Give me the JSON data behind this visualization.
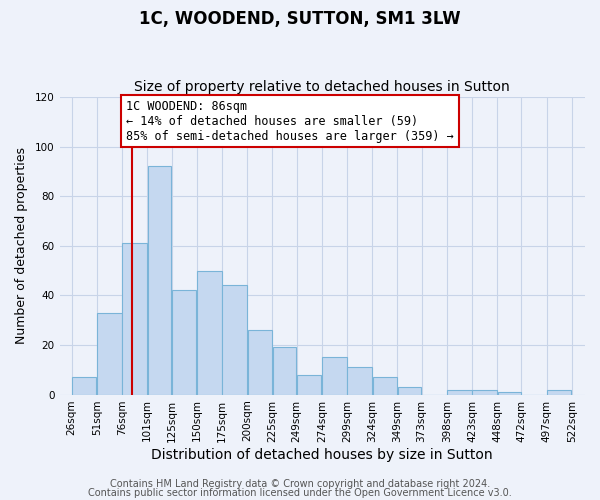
{
  "title": "1C, WOODEND, SUTTON, SM1 3LW",
  "subtitle": "Size of property relative to detached houses in Sutton",
  "xlabel": "Distribution of detached houses by size in Sutton",
  "ylabel": "Number of detached properties",
  "bar_left_edges": [
    26,
    51,
    76,
    101,
    125,
    150,
    175,
    200,
    225,
    249,
    274,
    299,
    324,
    349,
    373,
    398,
    423,
    448,
    472,
    497
  ],
  "bar_heights": [
    7,
    33,
    61,
    92,
    42,
    50,
    44,
    26,
    19,
    8,
    15,
    11,
    7,
    3,
    0,
    2,
    2,
    1,
    0,
    2
  ],
  "bar_widths": [
    25,
    25,
    25,
    24,
    25,
    25,
    25,
    25,
    24,
    25,
    25,
    25,
    25,
    24,
    25,
    25,
    25,
    24,
    25,
    25
  ],
  "tick_labels": [
    "26sqm",
    "51sqm",
    "76sqm",
    "101sqm",
    "125sqm",
    "150sqm",
    "175sqm",
    "200sqm",
    "225sqm",
    "249sqm",
    "274sqm",
    "299sqm",
    "324sqm",
    "349sqm",
    "373sqm",
    "398sqm",
    "423sqm",
    "448sqm",
    "472sqm",
    "497sqm",
    "522sqm"
  ],
  "tick_positions": [
    26,
    51,
    76,
    101,
    125,
    150,
    175,
    200,
    225,
    249,
    274,
    299,
    324,
    349,
    373,
    398,
    423,
    448,
    472,
    497,
    522
  ],
  "bar_color": "#c5d8f0",
  "bar_edge_color": "#7ab4d8",
  "vline_x": 86,
  "vline_color": "#cc0000",
  "annotation_box_text": "1C WOODEND: 86sqm\n← 14% of detached houses are smaller (59)\n85% of semi-detached houses are larger (359) →",
  "annotation_box_color": "#cc0000",
  "ylim": [
    0,
    120
  ],
  "yticks": [
    0,
    20,
    40,
    60,
    80,
    100,
    120
  ],
  "xlim_left": 14,
  "xlim_right": 535,
  "grid_color": "#c8d4e8",
  "bg_color": "#eef2fa",
  "footer_line1": "Contains HM Land Registry data © Crown copyright and database right 2024.",
  "footer_line2": "Contains public sector information licensed under the Open Government Licence v3.0.",
  "title_fontsize": 12,
  "subtitle_fontsize": 10,
  "xlabel_fontsize": 10,
  "ylabel_fontsize": 9,
  "tick_fontsize": 7.5,
  "annotation_fontsize": 8.5,
  "footer_fontsize": 7
}
